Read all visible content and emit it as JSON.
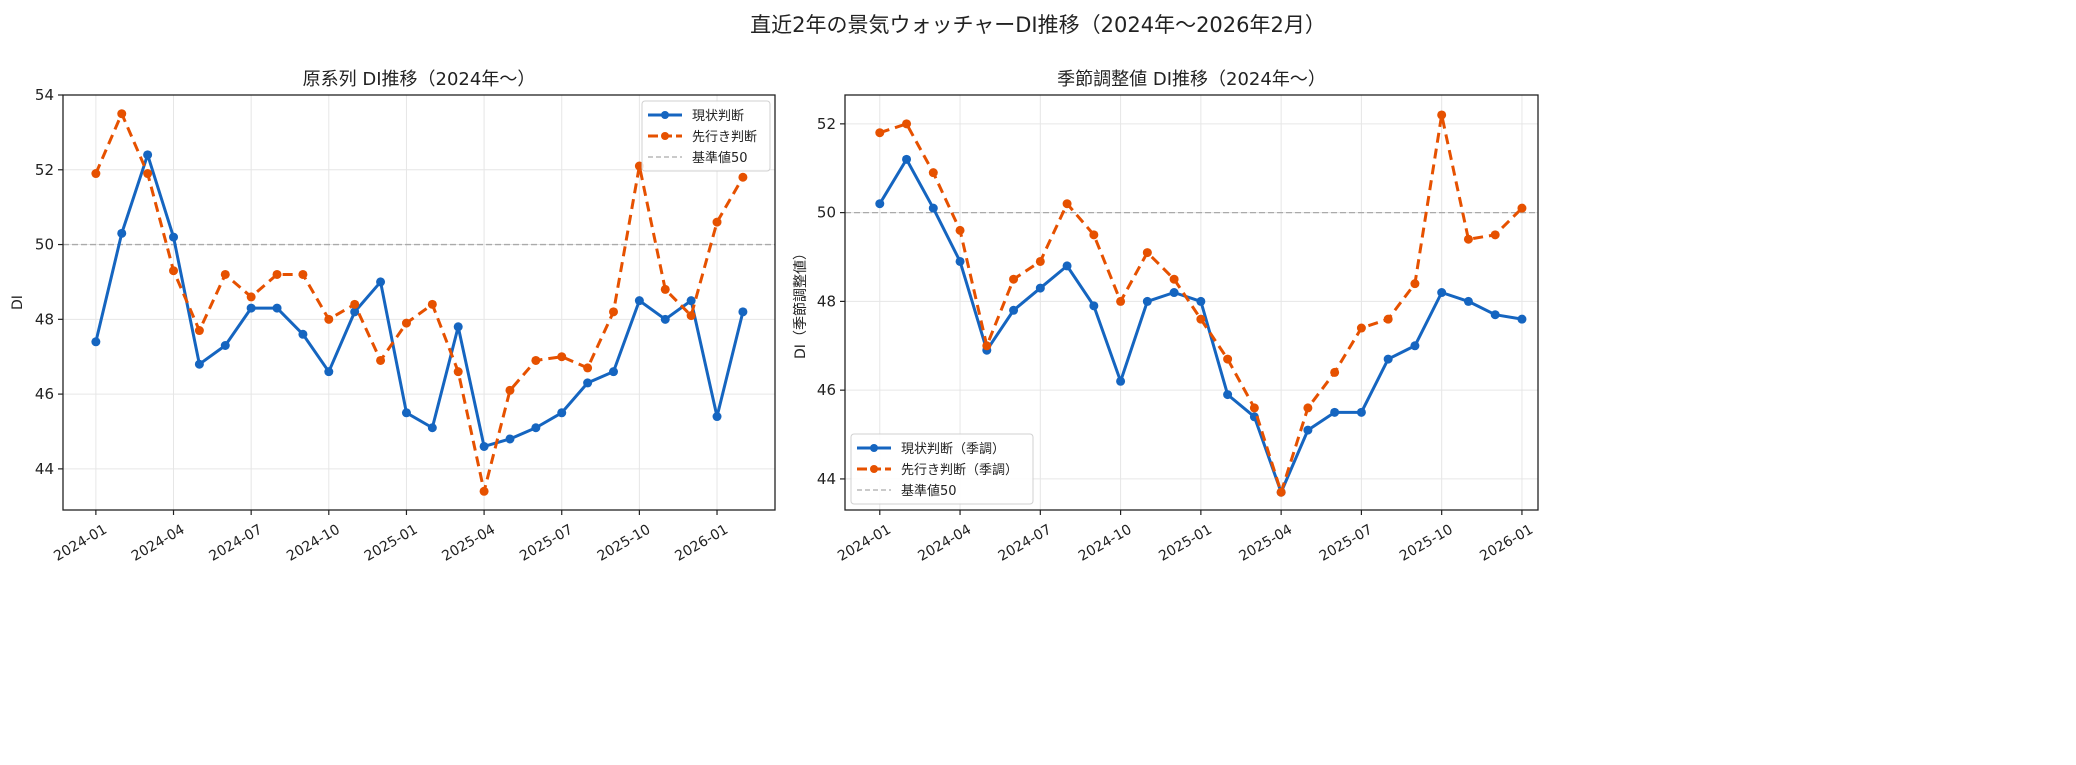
{
  "title": "直近2年の景気ウォッチャーDI推移（2024年〜2026年2月）",
  "colors": {
    "current": "#1565c0",
    "outlook": "#e65100",
    "baseline": "#aaaaaa"
  },
  "chart_data": [
    {
      "type": "line",
      "title": "原系列 DI推移（2024年〜）",
      "xlabel": "",
      "ylabel": "DI",
      "x": [
        "2024-01",
        "2024-02",
        "2024-03",
        "2024-04",
        "2024-05",
        "2024-06",
        "2024-07",
        "2024-08",
        "2024-09",
        "2024-10",
        "2024-11",
        "2024-12",
        "2025-01",
        "2025-02",
        "2025-03",
        "2025-04",
        "2025-05",
        "2025-06",
        "2025-07",
        "2025-08",
        "2025-09",
        "2025-10",
        "2025-11",
        "2025-12",
        "2026-01",
        "2026-02"
      ],
      "xticks": [
        "2024-01",
        "2024-04",
        "2024-07",
        "2024-10",
        "2025-01",
        "2025-04",
        "2025-07",
        "2025-10",
        "2026-01"
      ],
      "ylim": [
        42.9,
        54
      ],
      "yticks": [
        44,
        46,
        48,
        50,
        52,
        54
      ],
      "grid": true,
      "legend": "top-right",
      "baseline": {
        "name": "基準値50",
        "value": 50
      },
      "series": [
        {
          "name": "現状判断",
          "style": "solid",
          "values": [
            47.4,
            50.3,
            52.4,
            50.2,
            46.8,
            47.3,
            48.3,
            48.3,
            47.6,
            46.6,
            48.2,
            49.0,
            45.5,
            45.1,
            47.8,
            44.6,
            44.8,
            45.1,
            45.5,
            46.3,
            46.6,
            48.5,
            48.0,
            48.5,
            45.4,
            48.2
          ]
        },
        {
          "name": "先行き判断",
          "style": "dashed",
          "values": [
            51.9,
            53.5,
            51.9,
            49.3,
            47.7,
            49.2,
            48.6,
            49.2,
            49.2,
            48.0,
            48.4,
            46.9,
            47.9,
            48.4,
            46.6,
            43.4,
            46.1,
            46.9,
            47.0,
            46.7,
            48.2,
            52.1,
            48.8,
            48.1,
            50.6,
            51.8
          ]
        }
      ]
    },
    {
      "type": "line",
      "title": "季節調整値 DI推移（2024年〜）",
      "xlabel": "",
      "ylabel": "DI（季節調整値）",
      "x": [
        "2024-01",
        "2024-02",
        "2024-03",
        "2024-04",
        "2024-05",
        "2024-06",
        "2024-07",
        "2024-08",
        "2024-09",
        "2024-10",
        "2024-11",
        "2024-12",
        "2025-01",
        "2025-02",
        "2025-03",
        "2025-04",
        "2025-05",
        "2025-06",
        "2025-07",
        "2025-08",
        "2025-09",
        "2025-10",
        "2025-11",
        "2025-12",
        "2026-01"
      ],
      "xticks": [
        "2024-01",
        "2024-04",
        "2024-07",
        "2024-10",
        "2025-01",
        "2025-04",
        "2025-07",
        "2025-10",
        "2026-01"
      ],
      "ylim": [
        43.3,
        52.65
      ],
      "yticks": [
        44,
        46,
        48,
        50,
        52
      ],
      "grid": true,
      "legend": "bottom-left",
      "baseline": {
        "name": "基準値50",
        "value": 50
      },
      "series": [
        {
          "name": "現状判断（季調）",
          "style": "solid",
          "values": [
            50.2,
            51.2,
            50.1,
            48.9,
            46.9,
            47.8,
            48.3,
            48.8,
            47.9,
            46.2,
            48.0,
            48.2,
            48.0,
            45.9,
            45.4,
            43.7,
            45.1,
            45.5,
            45.5,
            46.7,
            47.0,
            48.2,
            48.0,
            47.7,
            47.6
          ]
        },
        {
          "name": "先行き判断（季調）",
          "style": "dashed",
          "values": [
            51.8,
            52.0,
            50.9,
            49.6,
            47.0,
            48.5,
            48.9,
            50.2,
            49.5,
            48.0,
            49.1,
            48.5,
            47.6,
            46.7,
            45.6,
            43.7,
            45.6,
            46.4,
            47.4,
            47.6,
            48.4,
            52.2,
            49.4,
            49.5,
            50.1
          ]
        }
      ]
    }
  ]
}
